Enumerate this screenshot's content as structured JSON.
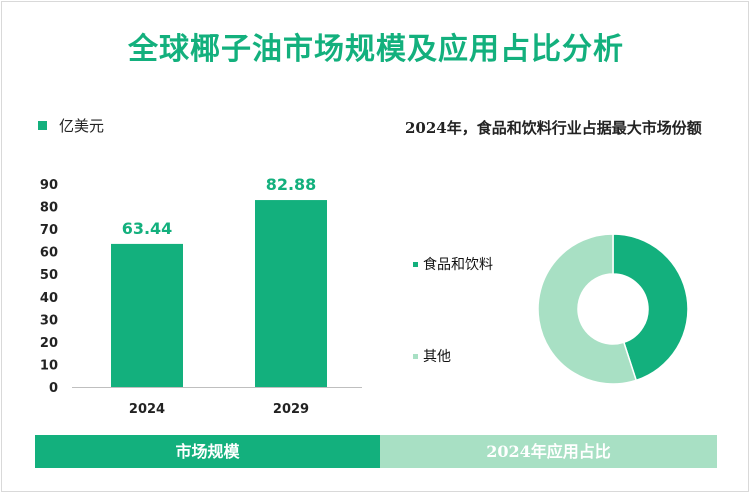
{
  "title": "全球椰子油市场规模及应用占比分析",
  "chart_data": [
    {
      "type": "bar",
      "legend": "亿美元",
      "categories": [
        "2024",
        "2029"
      ],
      "values": [
        63.44,
        82.88
      ],
      "value_labels": [
        "63.44",
        "82.88"
      ],
      "ylim": [
        0,
        90
      ],
      "yticks": [
        0,
        10,
        20,
        30,
        40,
        50,
        60,
        70,
        80,
        90
      ],
      "color": "#13b07d"
    },
    {
      "type": "pie",
      "style": "donut",
      "title": "2024年，食品和饮料行业占据最大市场份额",
      "slices": [
        {
          "label": "食品和饮料",
          "value": 45,
          "color": "#13b07d"
        },
        {
          "label": "其他",
          "value": 55,
          "color": "#a8e0c4"
        }
      ]
    }
  ],
  "tabs": {
    "left": "市场规模",
    "right": "2024年应用占比"
  }
}
